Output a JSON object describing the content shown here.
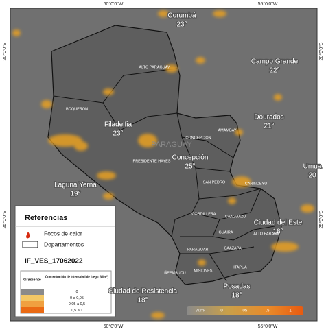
{
  "axes": {
    "top": [
      "60°0'0\"W",
      "55°0'0\"W"
    ],
    "bottom": [
      "60°0'0\"W",
      "55°0'0\"W"
    ],
    "left": [
      "20°0'0\"S",
      "25°0'0\"S"
    ],
    "right": [
      "20°0'0\"S",
      "25°0'0\"S"
    ]
  },
  "country": "PARAGUAY",
  "cities": [
    {
      "name": "Corumbá",
      "temp": "23°"
    },
    {
      "name": "Campo Grande",
      "temp": "22°"
    },
    {
      "name": "Dourados",
      "temp": "21°"
    },
    {
      "name": "Filadelfia",
      "temp": "23°"
    },
    {
      "name": "Concepción",
      "temp": "25°"
    },
    {
      "name": "Laguna Yerna",
      "temp": "19°"
    },
    {
      "name": "Ciudad del Este",
      "temp": "18°"
    },
    {
      "name": "Ciudad de Resistencia",
      "temp": "18°"
    },
    {
      "name": "Posadas",
      "temp": "18°"
    },
    {
      "name": "Umua",
      "temp": "20"
    }
  ],
  "departments": [
    "ALTO PARAGUAY",
    "BOQUERON",
    "PRESIDENTE HAYES",
    "CONCEPCION",
    "AMAMBAY",
    "SAN PEDRO",
    "CANINDEYU",
    "CAAGUAZU",
    "CORDILLERA",
    "GUAIRA",
    "CAAZAPA",
    "PARAGUARI",
    "ALTO PARANA",
    "MISIONES",
    "ÑEEMBUCU",
    "ITAPUA"
  ],
  "legend": {
    "title": "Referencias",
    "items": [
      "Focos de calor",
      "Departamentos"
    ],
    "layer": "IF_VES_17062022",
    "table": {
      "header": [
        "Gradiente",
        "Concentración de intensidad de fuego (W/m²)"
      ],
      "rows": [
        "0",
        "0 a 0,05",
        "0,05 a 0,5",
        "0,5 a 1"
      ]
    }
  },
  "colorbar": {
    "unit": "W/m²",
    "labels": [
      "0",
      ".05",
      ".5",
      "1"
    ]
  }
}
